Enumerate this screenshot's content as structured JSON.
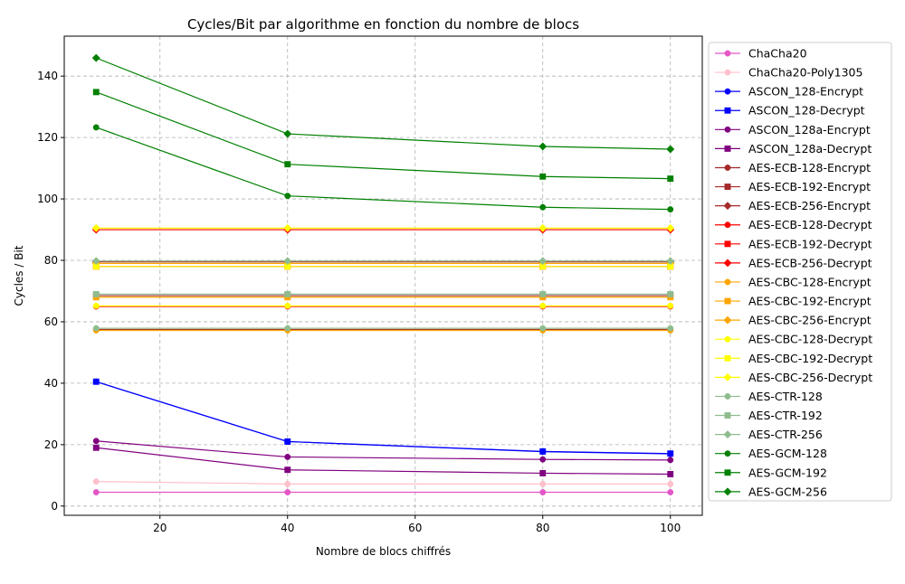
{
  "chart_data": {
    "type": "line",
    "title": "Cycles/Bit par algorithme en fonction du nombre de blocs",
    "xlabel": "Nombre de blocs chiffrés",
    "ylabel": "Cycles / Bit",
    "x": [
      10,
      40,
      80,
      100
    ],
    "xlim": [
      5,
      105
    ],
    "ylim": [
      -3,
      153
    ],
    "xticks": [
      20,
      40,
      60,
      80,
      100
    ],
    "yticks": [
      0,
      20,
      40,
      60,
      80,
      100,
      120,
      140
    ],
    "xtick_labels": [
      "20",
      "40",
      "60",
      "80",
      "100"
    ],
    "ytick_labels": [
      "0",
      "20",
      "40",
      "60",
      "80",
      "100",
      "120",
      "140"
    ],
    "grid": true,
    "legend_position": "outside-right",
    "series": [
      {
        "name": "ChaCha20",
        "color": "#e455c6",
        "marker": "circle",
        "values": [
          4.5,
          4.5,
          4.5,
          4.5
        ]
      },
      {
        "name": "ChaCha20-Poly1305",
        "color": "#ffc0cb",
        "marker": "circle",
        "values": [
          8.0,
          7.2,
          7.2,
          7.2
        ]
      },
      {
        "name": "ASCON_128-Encrypt",
        "color": "#0000ff",
        "marker": "circle",
        "values": [
          40.5,
          21.0,
          17.7,
          17.0
        ]
      },
      {
        "name": "ASCON_128-Decrypt",
        "color": "#0000ff",
        "marker": "square",
        "values": [
          40.5,
          21.0,
          17.8,
          17.1
        ]
      },
      {
        "name": "ASCON_128a-Encrypt",
        "color": "#800080",
        "marker": "circle",
        "values": [
          21.2,
          16.0,
          15.2,
          15.0
        ]
      },
      {
        "name": "ASCON_128a-Decrypt",
        "color": "#800080",
        "marker": "square",
        "values": [
          19.0,
          11.8,
          10.7,
          10.4
        ]
      },
      {
        "name": "AES-ECB-128-Encrypt",
        "color": "#a52a2a",
        "marker": "circle",
        "values": [
          57.5,
          57.5,
          57.5,
          57.5
        ]
      },
      {
        "name": "AES-ECB-192-Encrypt",
        "color": "#a52a2a",
        "marker": "square",
        "values": [
          68.5,
          68.5,
          68.5,
          68.5
        ]
      },
      {
        "name": "AES-ECB-256-Encrypt",
        "color": "#a52a2a",
        "marker": "diamond",
        "values": [
          79.5,
          79.5,
          79.5,
          79.5
        ]
      },
      {
        "name": "AES-ECB-128-Decrypt",
        "color": "#ff0000",
        "marker": "circle",
        "values": [
          65.0,
          65.0,
          65.0,
          65.0
        ]
      },
      {
        "name": "AES-ECB-192-Decrypt",
        "color": "#ff0000",
        "marker": "square",
        "values": [
          78.0,
          78.0,
          78.0,
          78.0
        ]
      },
      {
        "name": "AES-ECB-256-Decrypt",
        "color": "#ff0000",
        "marker": "diamond",
        "values": [
          90.0,
          90.0,
          90.0,
          90.0
        ]
      },
      {
        "name": "AES-CBC-128-Encrypt",
        "color": "#ffa500",
        "marker": "circle",
        "values": [
          57.2,
          57.2,
          57.2,
          57.2
        ]
      },
      {
        "name": "AES-CBC-192-Encrypt",
        "color": "#ffa500",
        "marker": "square",
        "values": [
          68.0,
          68.0,
          68.0,
          68.0
        ]
      },
      {
        "name": "AES-CBC-256-Encrypt",
        "color": "#ffa500",
        "marker": "diamond",
        "values": [
          79.0,
          79.0,
          79.0,
          79.0
        ]
      },
      {
        "name": "AES-CBC-128-Decrypt",
        "color": "#ffff00",
        "marker": "circle",
        "values": [
          65.2,
          65.2,
          65.2,
          65.2
        ]
      },
      {
        "name": "AES-CBC-192-Decrypt",
        "color": "#ffff00",
        "marker": "square",
        "values": [
          78.0,
          78.0,
          78.0,
          78.0
        ]
      },
      {
        "name": "AES-CBC-256-Decrypt",
        "color": "#ffff00",
        "marker": "diamond",
        "values": [
          90.5,
          90.5,
          90.5,
          90.5
        ]
      },
      {
        "name": "AES-CTR-128",
        "color": "#8fbc8f",
        "marker": "circle",
        "values": [
          57.9,
          57.9,
          57.9,
          57.9
        ]
      },
      {
        "name": "AES-CTR-192",
        "color": "#8fbc8f",
        "marker": "square",
        "values": [
          69.0,
          69.0,
          69.0,
          69.0
        ]
      },
      {
        "name": "AES-CTR-256",
        "color": "#8fbc8f",
        "marker": "diamond",
        "values": [
          79.8,
          79.8,
          79.8,
          79.8
        ]
      },
      {
        "name": "AES-GCM-128",
        "color": "#008000",
        "marker": "circle",
        "values": [
          123.3,
          101.0,
          97.3,
          96.6
        ]
      },
      {
        "name": "AES-GCM-192",
        "color": "#008000",
        "marker": "square",
        "values": [
          134.8,
          111.3,
          107.3,
          106.6
        ]
      },
      {
        "name": "AES-GCM-256",
        "color": "#008000",
        "marker": "diamond",
        "values": [
          145.9,
          121.2,
          117.1,
          116.2
        ]
      }
    ]
  }
}
